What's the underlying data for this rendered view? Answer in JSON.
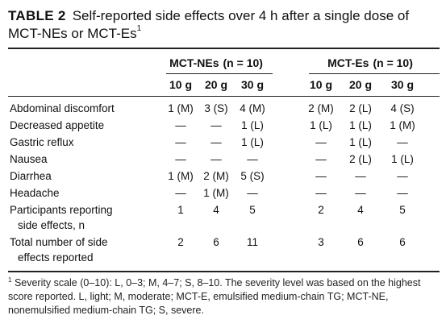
{
  "caption": {
    "table_number": "TABLE 2",
    "title": "Self-reported side effects over 4 h after a single dose of MCT-NEs or MCT-Es",
    "footnote_ref": "1"
  },
  "groups": [
    {
      "name": "MCT-NEs",
      "n_label": "(n = 10)"
    },
    {
      "name": "MCT-Es",
      "n_label": "(n = 10)"
    }
  ],
  "doses": [
    "10 g",
    "20 g",
    "30 g",
    "10 g",
    "20 g",
    "30 g"
  ],
  "rows": [
    {
      "label": [
        "Abdominal discomfort"
      ],
      "values": [
        "1 (M)",
        "3 (S)",
        "4 (M)",
        "2 (M)",
        "2 (L)",
        "4 (S)"
      ]
    },
    {
      "label": [
        "Decreased appetite"
      ],
      "values": [
        "—",
        "—",
        "1 (L)",
        "1 (L)",
        "1 (L)",
        "1 (M)"
      ]
    },
    {
      "label": [
        "Gastric reflux"
      ],
      "values": [
        "—",
        "—",
        "1 (L)",
        "—",
        "1 (L)",
        "—"
      ]
    },
    {
      "label": [
        "Nausea"
      ],
      "values": [
        "—",
        "—",
        "—",
        "—",
        "2 (L)",
        "1 (L)"
      ]
    },
    {
      "label": [
        "Diarrhea"
      ],
      "values": [
        "1 (M)",
        "2 (M)",
        "5 (S)",
        "—",
        "—",
        "—"
      ]
    },
    {
      "label": [
        "Headache"
      ],
      "values": [
        "—",
        "1 (M)",
        "—",
        "—",
        "—",
        "—"
      ]
    },
    {
      "label": [
        "Participants reporting",
        "side effects, n"
      ],
      "values": [
        "1",
        "4",
        "5",
        "2",
        "4",
        "5"
      ]
    },
    {
      "label": [
        "Total number of side",
        "effects reported"
      ],
      "values": [
        "2",
        "6",
        "11",
        "3",
        "6",
        "6"
      ]
    }
  ],
  "footnote": {
    "marker": "1",
    "text": "Severity scale (0–10): L, 0–3; M, 4–7; S, 8–10. The severity level was based on the highest score reported. L, light; M, moderate; MCT-E, emulsified medium-chain TG; MCT-NE, nonemulsified medium-chain TG; S, severe."
  }
}
